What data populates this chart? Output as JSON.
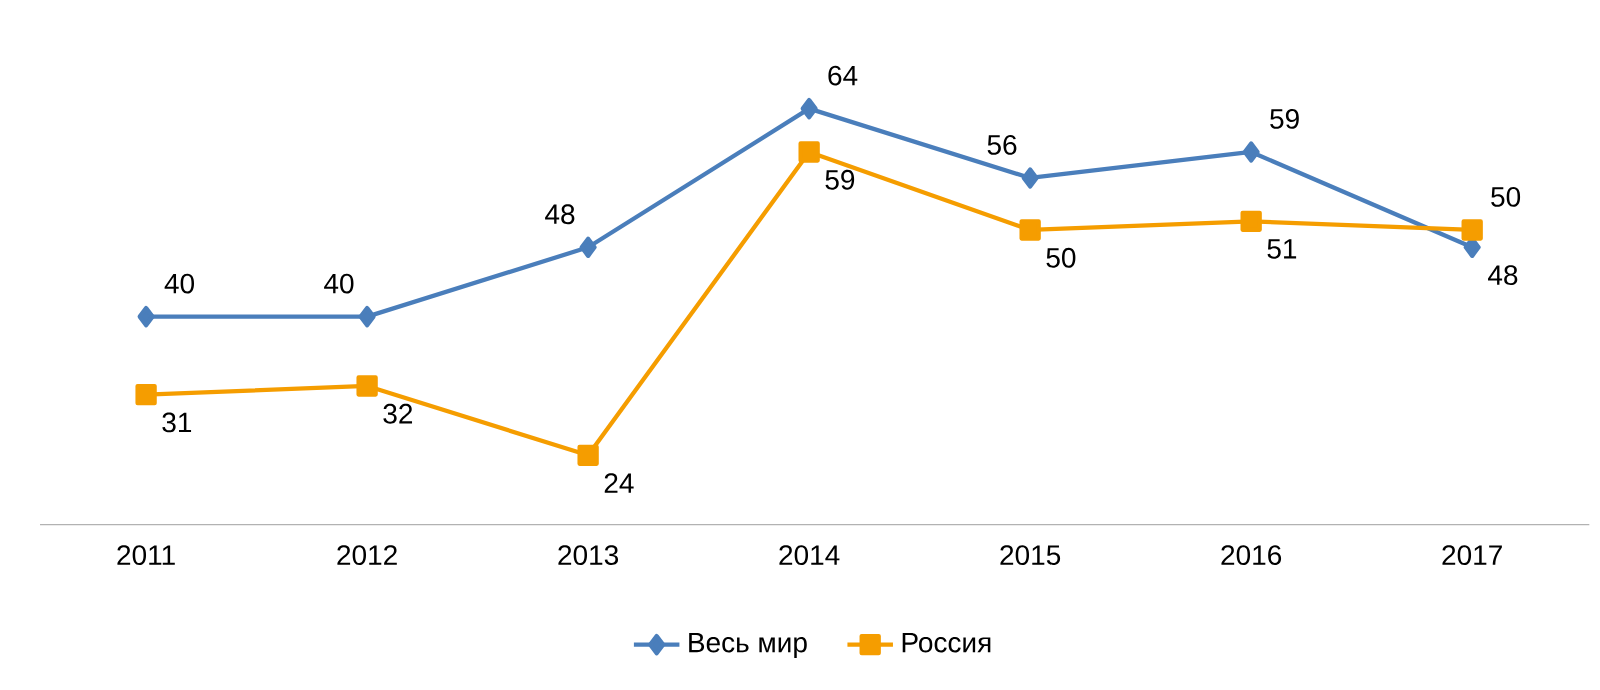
{
  "chart_data": {
    "type": "line",
    "categories": [
      "2011",
      "2012",
      "2013",
      "2014",
      "2015",
      "2016",
      "2017"
    ],
    "series": [
      {
        "name": "Весь мир",
        "color": "#4a7ebb",
        "marker": "diamond",
        "values": [
          40,
          40,
          48,
          64,
          56,
          59,
          48
        ]
      },
      {
        "name": "Россия",
        "color": "#f59d00",
        "marker": "square",
        "values": [
          31,
          32,
          24,
          59,
          50,
          51,
          50
        ]
      }
    ],
    "data_labels": true,
    "legend": "bottom",
    "tick_labels": "x"
  }
}
